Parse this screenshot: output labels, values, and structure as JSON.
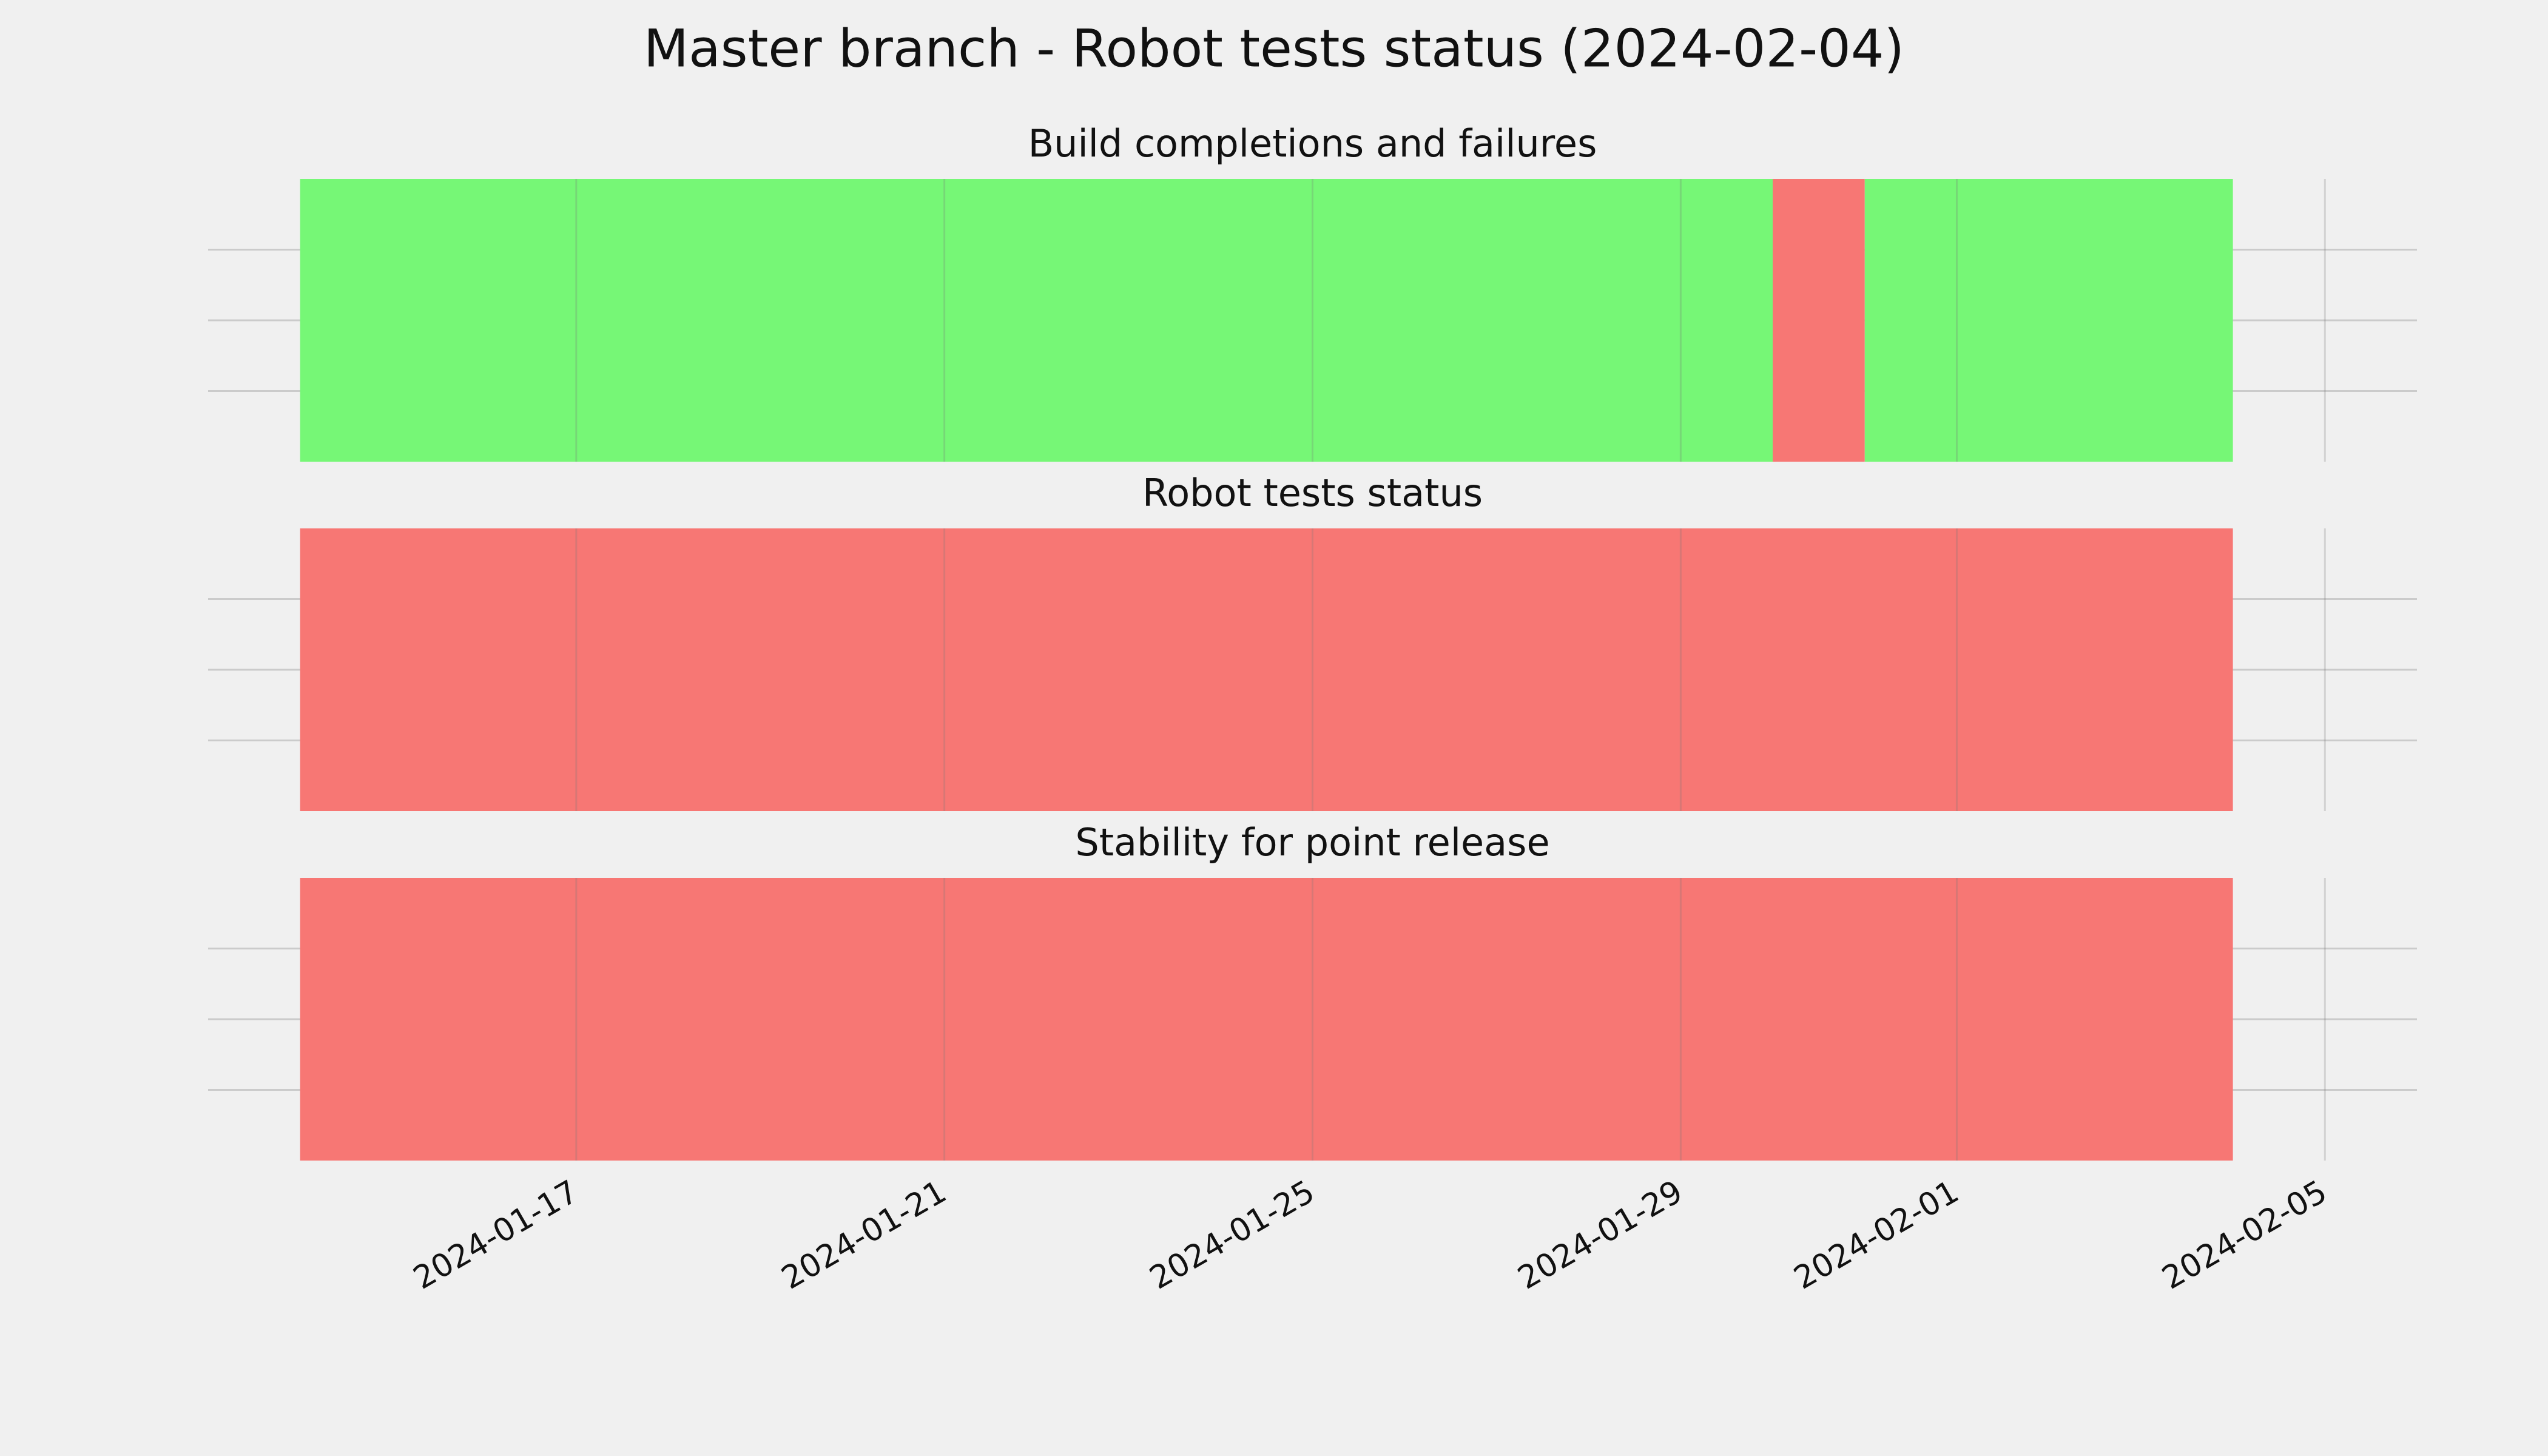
{
  "title": "Master branch - Robot tests status (2024-02-04)",
  "chart_data": [
    {
      "type": "timeline",
      "title": "Build completions and failures",
      "segments": [
        {
          "start": "2024-01-14",
          "end": "2024-01-30",
          "color": "#76f776"
        },
        {
          "start": "2024-01-30",
          "end": "2024-01-31",
          "color": "#f77774"
        },
        {
          "start": "2024-01-31",
          "end": "2024-02-04",
          "color": "#76f776"
        }
      ],
      "xlim": [
        "2024-01-13",
        "2024-02-06"
      ],
      "xticks": [
        "2024-01-17",
        "2024-01-21",
        "2024-01-25",
        "2024-01-29",
        "2024-02-01",
        "2024-02-05"
      ],
      "ylim": [
        0,
        1
      ],
      "yticks": [
        0.25,
        0.5,
        0.75
      ],
      "grid": true
    },
    {
      "type": "timeline",
      "title": "Robot tests status",
      "segments": [
        {
          "start": "2024-01-14",
          "end": "2024-02-04",
          "color": "#f77774"
        }
      ],
      "xlim": [
        "2024-01-13",
        "2024-02-06"
      ],
      "xticks": [
        "2024-01-17",
        "2024-01-21",
        "2024-01-25",
        "2024-01-29",
        "2024-02-01",
        "2024-02-05"
      ],
      "ylim": [
        0,
        1
      ],
      "yticks": [
        0.25,
        0.5,
        0.75
      ],
      "grid": true
    },
    {
      "type": "timeline",
      "title": "Stability for point release",
      "segments": [
        {
          "start": "2024-01-14",
          "end": "2024-02-04",
          "color": "#f77774"
        }
      ],
      "xlim": [
        "2024-01-13",
        "2024-02-06"
      ],
      "xticks": [
        "2024-01-17",
        "2024-01-21",
        "2024-01-25",
        "2024-01-29",
        "2024-02-01",
        "2024-02-05"
      ],
      "ylim": [
        0,
        1
      ],
      "yticks": [
        0.25,
        0.5,
        0.75
      ],
      "grid": true
    }
  ]
}
